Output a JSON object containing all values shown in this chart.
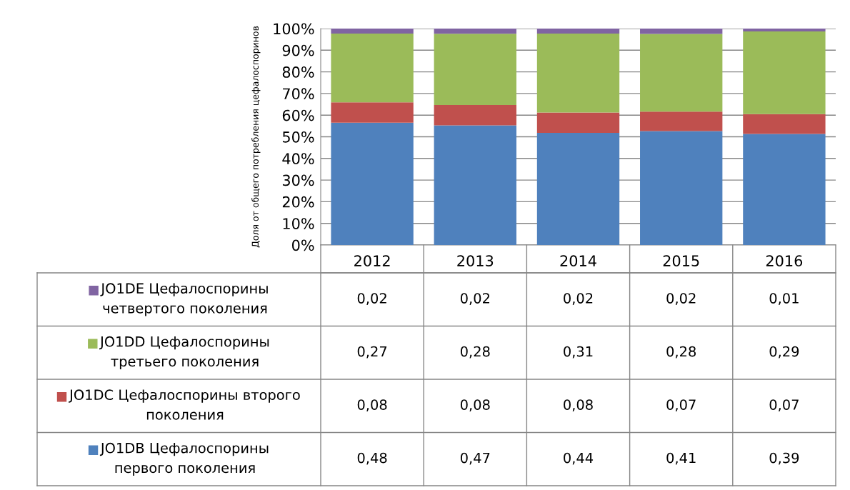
{
  "chart_data": {
    "type": "bar",
    "stacked": true,
    "ylabel": "Доля от общего потребления цефалоспоринов",
    "categories": [
      "2012",
      "2013",
      "2014",
      "2015",
      "2016"
    ],
    "series": [
      {
        "name": "JO1DB Цефалоспорины\nпервого поколения",
        "color": "#4f81bd",
        "values": [
          56.5,
          55.3,
          51.8,
          52.6,
          51.3
        ]
      },
      {
        "name": "JO1DC Цефалоспорины второго\nпоколения",
        "color": "#c0504d",
        "values": [
          9.4,
          9.4,
          9.4,
          9.0,
          9.2
        ]
      },
      {
        "name": "JO1DD Цефалоспорины\nтретьего поколения",
        "color": "#9bbb59",
        "values": [
          31.8,
          32.9,
          36.5,
          35.9,
          38.2
        ]
      },
      {
        "name": "JO1DE Цефалоспорины\nчетвертого поколения",
        "color": "#8064a2",
        "values": [
          2.4,
          2.4,
          2.3,
          2.5,
          1.3
        ]
      }
    ],
    "annotations": [
      "0,02",
      "0,02",
      "0,02",
      "0,02",
      "0,01",
      "0,27",
      "0,28",
      "0,31",
      "0,28",
      "0,29",
      "0,08",
      "0,08",
      "0,08",
      "0,07",
      "0,07",
      "0,48",
      "0,47",
      "0,44",
      "0,41",
      "0,39"
    ],
    "ylim": [
      0,
      100
    ],
    "yticks": [
      {
        "value": 0,
        "label": "0%"
      },
      {
        "value": 10,
        "label": "10%"
      },
      {
        "value": 20,
        "label": "20%"
      },
      {
        "value": 30,
        "label": "30%"
      },
      {
        "value": 40,
        "label": "40%"
      },
      {
        "value": 50,
        "label": "50%"
      },
      {
        "value": 60,
        "label": "60%"
      },
      {
        "value": 70,
        "label": "70%"
      },
      {
        "value": 80,
        "label": "80%"
      },
      {
        "value": 90,
        "label": "90%"
      },
      {
        "value": 100,
        "label": "100%"
      }
    ],
    "grid": "y",
    "legend": "bottom"
  }
}
